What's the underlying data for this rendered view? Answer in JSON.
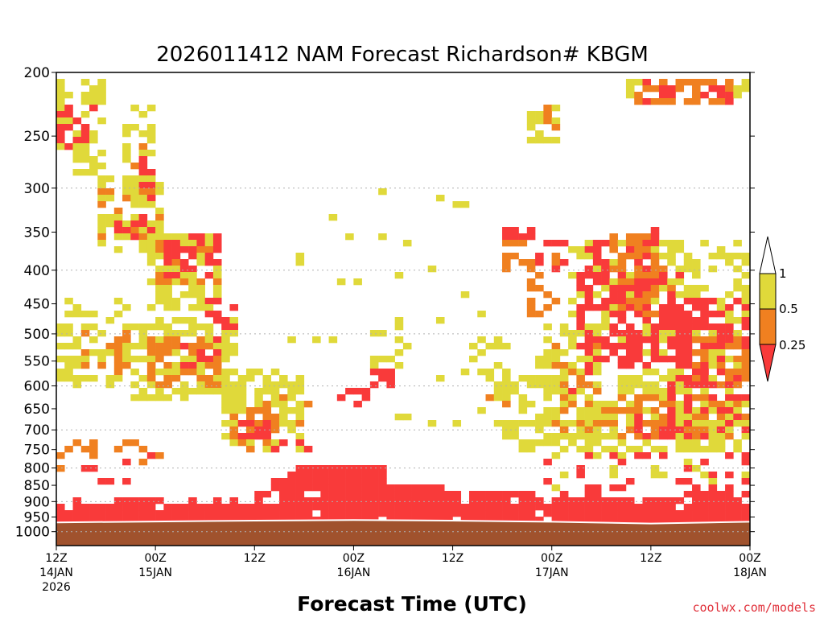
{
  "chart_data": {
    "type": "heatmap",
    "title": "2026011412 NAM Forecast Richardson# KBGM",
    "xlabel": "Forecast Time (UTC)",
    "ylabel": "",
    "credit": "coolwx.com/models",
    "x_ticks": [
      {
        "hour": 0,
        "line1": "12Z",
        "line2": "14JAN",
        "line3": "2026"
      },
      {
        "hour": 12,
        "line1": "00Z",
        "line2": "15JAN",
        "line3": ""
      },
      {
        "hour": 24,
        "line1": "12Z",
        "line2": "",
        "line3": ""
      },
      {
        "hour": 36,
        "line1": "00Z",
        "line2": "16JAN",
        "line3": ""
      },
      {
        "hour": 48,
        "line1": "12Z",
        "line2": "",
        "line3": ""
      },
      {
        "hour": 60,
        "line1": "00Z",
        "line2": "17JAN",
        "line3": ""
      },
      {
        "hour": 72,
        "line1": "12Z",
        "line2": "",
        "line3": ""
      },
      {
        "hour": 84,
        "line1": "00Z",
        "line2": "18JAN",
        "line3": ""
      }
    ],
    "xlim": [
      0,
      84
    ],
    "y_ticks": [
      200,
      250,
      300,
      350,
      400,
      450,
      500,
      550,
      600,
      650,
      700,
      750,
      800,
      850,
      900,
      950,
      1000
    ],
    "y_gridlines": [
      300,
      400,
      500,
      600,
      700,
      800,
      900,
      1000
    ],
    "ylim": [
      200,
      1050
    ],
    "y_scale": "log",
    "y_inverted": true,
    "grid": "dotted horizontal",
    "legend": "right",
    "colorbar": {
      "labels": [
        "1",
        "0.5",
        "0.25"
      ],
      "bins": [
        {
          "range": "> 1",
          "color": "#ffffff"
        },
        {
          "range": "0.5-1",
          "color": "#e0d93a"
        },
        {
          "range": "0.25-0.5",
          "color": "#f08020"
        },
        {
          "range": "< 0.25",
          "color": "#f93a3a"
        }
      ]
    },
    "colors": {
      "low": "#f93a3a",
      "mid": "#f08020",
      "high": "#e0d93a",
      "ground": "#a0522d"
    },
    "surface_pressure": [
      {
        "hour": 0,
        "p": 968
      },
      {
        "hour": 12,
        "p": 965
      },
      {
        "hour": 24,
        "p": 962
      },
      {
        "hour": 36,
        "p": 960
      },
      {
        "hour": 48,
        "p": 962
      },
      {
        "hour": 60,
        "p": 966
      },
      {
        "hour": 72,
        "p": 972
      },
      {
        "hour": 84,
        "p": 966
      }
    ],
    "regions": [
      {
        "h0": 0,
        "h1": 84,
        "p0": 915,
        "p1": 970,
        "cat": "low",
        "density": 0.96
      },
      {
        "h0": 2,
        "h1": 12,
        "p0": 885,
        "p1": 925,
        "cat": "low",
        "density": 0.55
      },
      {
        "h0": 10,
        "h1": 22,
        "p0": 895,
        "p1": 925,
        "cat": "low",
        "density": 0.5
      },
      {
        "h0": 24,
        "h1": 30,
        "p0": 835,
        "p1": 915,
        "cat": "low",
        "density": 0.65
      },
      {
        "h0": 28,
        "h1": 40,
        "p0": 800,
        "p1": 920,
        "cat": "low",
        "density": 0.95
      },
      {
        "h0": 40,
        "h1": 48,
        "p0": 840,
        "p1": 920,
        "cat": "low",
        "density": 0.95
      },
      {
        "h0": 48,
        "h1": 58,
        "p0": 860,
        "p1": 920,
        "cat": "low",
        "density": 0.85
      },
      {
        "h0": 58,
        "h1": 66,
        "p0": 870,
        "p1": 925,
        "cat": "low",
        "density": 0.7
      },
      {
        "h0": 66,
        "h1": 76,
        "p0": 885,
        "p1": 935,
        "cat": "low",
        "density": 0.6
      },
      {
        "h0": 76,
        "h1": 84,
        "p0": 860,
        "p1": 935,
        "cat": "low",
        "density": 0.8
      },
      {
        "h0": 0,
        "h1": 13,
        "p0": 730,
        "p1": 830,
        "cat": "mid",
        "density": 0.22
      },
      {
        "h0": 2,
        "h1": 13,
        "p0": 760,
        "p1": 840,
        "cat": "low",
        "density": 0.2
      },
      {
        "h0": 0,
        "h1": 6,
        "p0": 205,
        "p1": 270,
        "cat": "high",
        "density": 0.5
      },
      {
        "h0": 0,
        "h1": 5,
        "p0": 225,
        "p1": 265,
        "cat": "low",
        "density": 0.45
      },
      {
        "h0": 2,
        "h1": 6,
        "p0": 260,
        "p1": 290,
        "cat": "high",
        "density": 0.45
      },
      {
        "h0": 8,
        "h1": 12,
        "p0": 225,
        "p1": 310,
        "cat": "high",
        "density": 0.4
      },
      {
        "h0": 9,
        "h1": 11,
        "p0": 250,
        "p1": 300,
        "cat": "mid",
        "density": 0.4
      },
      {
        "h0": 10,
        "h1": 12,
        "p0": 270,
        "p1": 320,
        "cat": "low",
        "density": 0.35
      },
      {
        "h0": 5,
        "h1": 13,
        "p0": 290,
        "p1": 380,
        "cat": "high",
        "density": 0.55
      },
      {
        "h0": 5,
        "h1": 13,
        "p0": 300,
        "p1": 360,
        "cat": "mid",
        "density": 0.35
      },
      {
        "h0": 7,
        "h1": 13,
        "p0": 320,
        "p1": 360,
        "cat": "low",
        "density": 0.2
      },
      {
        "h0": 11,
        "h1": 20,
        "p0": 350,
        "p1": 460,
        "cat": "high",
        "density": 0.6
      },
      {
        "h0": 12,
        "h1": 20,
        "p0": 360,
        "p1": 420,
        "cat": "mid",
        "density": 0.4
      },
      {
        "h0": 13,
        "h1": 20,
        "p0": 355,
        "p1": 410,
        "cat": "low",
        "density": 0.4
      },
      {
        "h0": 18,
        "h1": 22,
        "p0": 440,
        "p1": 520,
        "cat": "low",
        "density": 0.35
      },
      {
        "h0": 0,
        "h1": 9,
        "p0": 440,
        "p1": 600,
        "cat": "high",
        "density": 0.45
      },
      {
        "h0": 3,
        "h1": 9,
        "p0": 480,
        "p1": 580,
        "cat": "mid",
        "density": 0.35
      },
      {
        "h0": 9,
        "h1": 22,
        "p0": 470,
        "p1": 630,
        "cat": "high",
        "density": 0.5
      },
      {
        "h0": 11,
        "h1": 20,
        "p0": 500,
        "p1": 600,
        "cat": "mid",
        "density": 0.45
      },
      {
        "h0": 15,
        "h1": 20,
        "p0": 490,
        "p1": 570,
        "cat": "low",
        "density": 0.3
      },
      {
        "h0": 20,
        "h1": 30,
        "p0": 570,
        "p1": 760,
        "cat": "high",
        "density": 0.55
      },
      {
        "h0": 21,
        "h1": 27,
        "p0": 630,
        "p1": 750,
        "cat": "mid",
        "density": 0.4
      },
      {
        "h0": 22,
        "h1": 26,
        "p0": 680,
        "p1": 740,
        "cat": "low",
        "density": 0.45
      },
      {
        "h0": 26,
        "h1": 31,
        "p0": 700,
        "p1": 750,
        "cat": "low",
        "density": 0.35
      },
      {
        "h0": 27,
        "h1": 31,
        "p0": 620,
        "p1": 700,
        "cat": "mid",
        "density": 0.3
      },
      {
        "h0": 34,
        "h1": 38,
        "p0": 610,
        "p1": 640,
        "cat": "low",
        "density": 0.5
      },
      {
        "h0": 38,
        "h1": 41,
        "p0": 570,
        "p1": 600,
        "cat": "low",
        "density": 0.35
      },
      {
        "h0": 38,
        "h1": 42,
        "p0": 470,
        "p1": 580,
        "cat": "high",
        "density": 0.15
      },
      {
        "h0": 51,
        "h1": 55,
        "p0": 450,
        "p1": 650,
        "cat": "high",
        "density": 0.2
      },
      {
        "h0": 52,
        "h1": 56,
        "p0": 560,
        "p1": 650,
        "cat": "mid",
        "density": 0.2
      },
      {
        "h0": 54,
        "h1": 62,
        "p0": 580,
        "p1": 760,
        "cat": "high",
        "density": 0.4
      },
      {
        "h0": 54,
        "h1": 58,
        "p0": 340,
        "p1": 360,
        "cat": "low",
        "density": 0.9
      },
      {
        "h0": 54,
        "h1": 58,
        "p0": 360,
        "p1": 400,
        "cat": "mid",
        "density": 0.4
      },
      {
        "h0": 57,
        "h1": 62,
        "p0": 380,
        "p1": 470,
        "cat": "mid",
        "density": 0.3
      },
      {
        "h0": 58,
        "h1": 62,
        "p0": 360,
        "p1": 400,
        "cat": "low",
        "density": 0.4
      },
      {
        "h0": 57,
        "h1": 61,
        "p0": 225,
        "p1": 255,
        "cat": "high",
        "density": 0.45
      },
      {
        "h0": 59,
        "h1": 61,
        "p0": 225,
        "p1": 245,
        "cat": "mid",
        "density": 0.5
      },
      {
        "h0": 58,
        "h1": 66,
        "p0": 480,
        "p1": 760,
        "cat": "high",
        "density": 0.5
      },
      {
        "h0": 60,
        "h1": 66,
        "p0": 500,
        "p1": 700,
        "cat": "mid",
        "density": 0.35
      },
      {
        "h0": 62,
        "h1": 66,
        "p0": 520,
        "p1": 620,
        "cat": "low",
        "density": 0.2
      },
      {
        "h0": 62,
        "h1": 84,
        "p0": 360,
        "p1": 560,
        "cat": "high",
        "density": 0.45
      },
      {
        "h0": 63,
        "h1": 76,
        "p0": 400,
        "p1": 560,
        "cat": "low",
        "density": 0.5
      },
      {
        "h0": 64,
        "h1": 72,
        "p0": 360,
        "p1": 450,
        "cat": "low",
        "density": 0.5
      },
      {
        "h0": 67,
        "h1": 72,
        "p0": 350,
        "p1": 400,
        "cat": "mid",
        "density": 0.5
      },
      {
        "h0": 70,
        "h1": 73,
        "p0": 340,
        "p1": 380,
        "cat": "low",
        "density": 0.5
      },
      {
        "h0": 68,
        "h1": 75,
        "p0": 380,
        "p1": 470,
        "cat": "mid",
        "density": 0.35
      },
      {
        "h0": 65,
        "h1": 80,
        "p0": 560,
        "p1": 760,
        "cat": "high",
        "density": 0.5
      },
      {
        "h0": 66,
        "h1": 78,
        "p0": 620,
        "p1": 720,
        "cat": "mid",
        "density": 0.4
      },
      {
        "h0": 70,
        "h1": 76,
        "p0": 650,
        "p1": 720,
        "cat": "low",
        "density": 0.3
      },
      {
        "h0": 74,
        "h1": 84,
        "p0": 440,
        "p1": 720,
        "cat": "low",
        "density": 0.6
      },
      {
        "h0": 76,
        "h1": 84,
        "p0": 500,
        "p1": 720,
        "cat": "mid",
        "density": 0.3
      },
      {
        "h0": 75,
        "h1": 84,
        "p0": 600,
        "p1": 760,
        "cat": "high",
        "density": 0.45
      },
      {
        "h0": 70,
        "h1": 82,
        "p0": 205,
        "p1": 225,
        "cat": "mid",
        "density": 0.6
      },
      {
        "h0": 71,
        "h1": 82,
        "p0": 205,
        "p1": 225,
        "cat": "low",
        "density": 0.2
      },
      {
        "h0": 69,
        "h1": 71,
        "p0": 205,
        "p1": 220,
        "cat": "high",
        "density": 0.5
      },
      {
        "h0": 82,
        "h1": 84,
        "p0": 205,
        "p1": 220,
        "cat": "high",
        "density": 0.5
      },
      {
        "h0": 59,
        "h1": 84,
        "p0": 760,
        "p1": 860,
        "cat": "low",
        "density": 0.2
      },
      {
        "h0": 59,
        "h1": 84,
        "p0": 760,
        "p1": 860,
        "cat": "high",
        "density": 0.1
      },
      {
        "h0": 28,
        "h1": 50,
        "p0": 300,
        "p1": 520,
        "cat": "high",
        "density": 0.03
      },
      {
        "h0": 40,
        "h1": 56,
        "p0": 520,
        "p1": 700,
        "cat": "high",
        "density": 0.05
      }
    ]
  }
}
